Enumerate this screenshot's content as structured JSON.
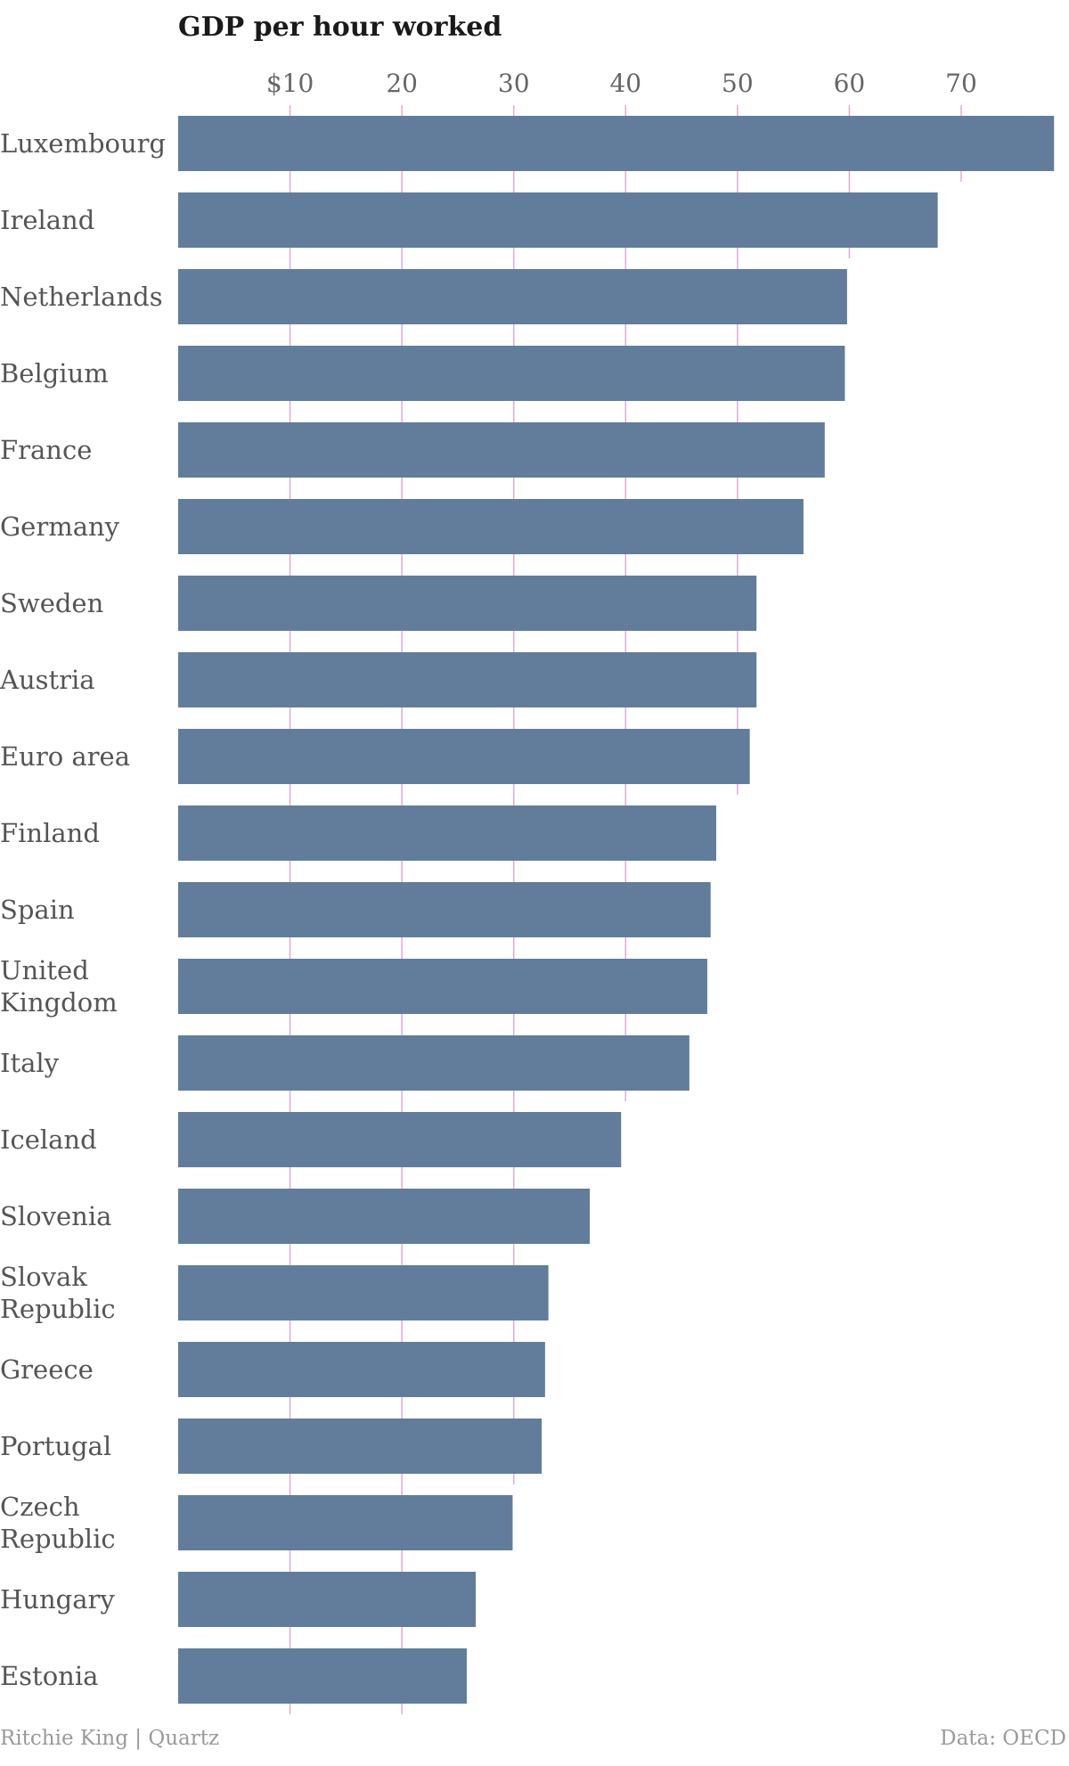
{
  "chart_data": {
    "type": "bar",
    "orientation": "horizontal",
    "title": "GDP per hour worked",
    "categories": [
      "Luxembourg",
      "Ireland",
      "Netherlands",
      "Belgium",
      "France",
      "Germany",
      "Sweden",
      "Austria",
      "Euro area",
      "Finland",
      "Spain",
      "United Kingdom",
      "Italy",
      "Iceland",
      "Slovenia",
      "Slovak Republic",
      "Greece",
      "Portugal",
      "Czech Republic",
      "Hungary",
      "Estonia"
    ],
    "values": [
      78.3,
      67.9,
      59.8,
      59.6,
      57.8,
      55.9,
      51.7,
      51.7,
      51.1,
      48.1,
      47.6,
      47.3,
      45.7,
      39.6,
      36.8,
      33.1,
      32.8,
      32.5,
      29.9,
      26.6,
      25.8
    ],
    "xlim": [
      0,
      79
    ],
    "xticks": [
      10,
      20,
      30,
      40,
      50,
      60,
      70
    ],
    "xtick_labels": [
      "$10",
      "20",
      "30",
      "40",
      "50",
      "60",
      "70"
    ],
    "grid": true,
    "colors": {
      "bar": "#617d9b",
      "grid": "#e3a9d6",
      "text": "#555555",
      "footer": "#999999"
    }
  },
  "footer": {
    "credit": "Ritchie King | Quartz",
    "source": "Data: OECD"
  }
}
